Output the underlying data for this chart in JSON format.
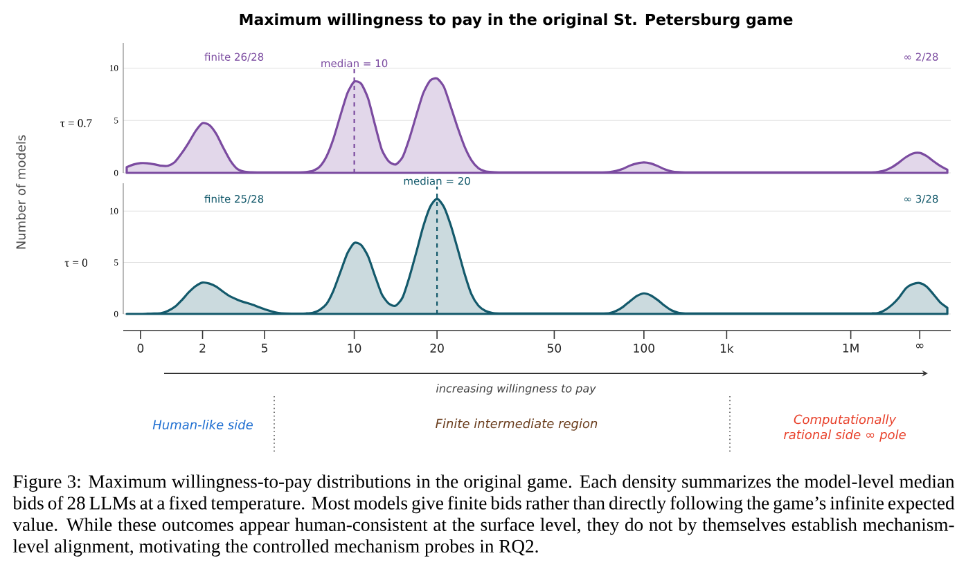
{
  "chart_data": [
    {
      "type": "area",
      "title": "Maximum willingness to pay in the original St. Petersburg game",
      "ylabel": "τ = 0.7",
      "annotations": [
        "finite 26/28",
        "∞ 2/28",
        "Number of models"
      ],
      "categories": [
        null,
        null,
        null,
        null,
        null,
        null,
        null,
        null,
        null,
        null,
        null,
        null,
        null,
        null,
        null,
        null,
        null,
        null,
        null,
        null,
        null,
        null,
        null,
        null,
        null,
        null,
        null,
        null,
        null,
        null,
        null,
        null,
        null,
        null,
        null,
        null,
        null,
        null,
        null,
        null,
        null,
        null,
        null,
        null,
        null,
        null,
        null,
        null,
        null,
        null,
        null,
        null,
        null,
        null,
        null,
        null,
        null,
        null,
        null,
        null,
        null,
        null,
        null,
        null,
        null,
        null,
        null,
        null,
        null,
        null,
        null,
        null,
        null,
        null,
        null,
        null,
        null,
        null,
        null,
        null,
        null,
        null,
        null,
        null,
        null,
        null,
        null,
        null,
        null,
        null,
        null,
        null,
        null,
        null,
        null,
        null,
        null,
        null,
        null,
        null,
        null,
        null,
        null,
        null,
        null,
        null,
        null,
        null,
        null,
        null,
        null,
        null,
        null,
        null,
        null,
        null,
        null,
        null,
        null,
        null
      ],
      "series": [
        {
          "color": "#7b4ba0",
          "values": [
            0.55,
            0.8,
            0.93,
            0.92,
            0.82,
            0.68,
            0.68,
            1.05,
            1.9,
            2.9,
            4.0,
            4.75,
            4.55,
            3.7,
            2.4,
            1.2,
            0.4,
            0.12,
            0.06,
            0.05,
            0.05,
            0.05,
            0.05,
            0.05,
            0.05,
            0.05,
            0.08,
            0.2,
            0.6,
            1.6,
            3.3,
            5.5,
            7.6,
            8.7,
            8.5,
            7.1,
            4.6,
            2.2,
            1.1,
            0.8,
            1.5,
            3.3,
            5.5,
            7.6,
            8.8,
            9.0,
            8.2,
            6.3,
            4.3,
            2.5,
            1.2,
            0.45,
            0.15,
            0.07,
            0.05,
            0.05,
            0.05,
            0.05,
            0.05,
            0.05,
            0.05,
            0.05,
            0.05,
            0.05,
            0.05,
            0.05,
            0.05,
            0.05,
            0.05,
            0.05,
            0.08,
            0.2,
            0.4,
            0.7,
            0.9,
            1.0,
            0.9,
            0.65,
            0.35,
            0.15,
            0.07,
            0.05,
            0.05,
            0.05,
            0.05,
            0.05,
            0.05,
            0.05,
            0.05,
            0.05,
            0.05,
            0.05,
            0.05,
            0.05,
            0.05,
            0.05,
            0.05,
            0.05,
            0.05,
            0.05,
            0.05,
            0.05,
            0.05,
            0.05,
            0.05,
            0.05,
            0.05,
            0.05,
            0.05,
            0.1,
            0.25,
            0.55,
            1.0,
            1.5,
            1.85,
            1.9,
            1.6,
            1.1,
            0.65,
            0.3
          ]
        }
      ],
      "ylim": [
        0,
        12.4
      ],
      "yticks": [
        0,
        5,
        10
      ],
      "tick_labels": "y",
      "grid": "y",
      "ref_lines": [
        {
          "axis": "x",
          "value": "10",
          "label": "median = 10",
          "color": "#7b4ba0",
          "line_style": "dashed"
        }
      ]
    },
    {
      "type": "area",
      "ylabel": "τ = 0",
      "xlabel": "increasing willingness to pay",
      "annotations": [
        "finite 25/28",
        "∞ 3/28",
        "Human-like side",
        "Finite intermediate region",
        "Computationally rational side ∞ pole",
        "Figure 3: Maximum willingness-to-pay distributions in the original game. Each density summarizes the model-level median bids of 28 LLMs at a fixed temperature. Most models give finite bids rather than directly following the game’s infinite expected value. While these outcomes appear human-consistent at the surface level, they do not by themselves establish mechanism-level alignment, motivating the controlled mechanism probes in RQ2."
      ],
      "categories": [
        null,
        null,
        "0",
        null,
        null,
        null,
        null,
        null,
        null,
        null,
        null,
        "2",
        null,
        null,
        null,
        null,
        null,
        null,
        null,
        null,
        "5",
        null,
        null,
        null,
        null,
        null,
        null,
        null,
        null,
        null,
        null,
        null,
        null,
        "10",
        null,
        null,
        null,
        null,
        null,
        null,
        null,
        null,
        null,
        null,
        null,
        "20",
        null,
        null,
        null,
        null,
        null,
        null,
        null,
        null,
        null,
        null,
        null,
        null,
        null,
        null,
        null,
        null,
        "50",
        null,
        null,
        null,
        null,
        null,
        null,
        null,
        null,
        null,
        null,
        null,
        null,
        "100",
        null,
        null,
        null,
        null,
        null,
        null,
        null,
        null,
        null,
        null,
        null,
        "1k",
        null,
        null,
        null,
        null,
        null,
        null,
        null,
        null,
        null,
        null,
        null,
        null,
        null,
        null,
        null,
        null,
        null,
        "1M",
        null,
        null,
        null,
        null,
        null,
        null,
        null,
        null,
        null,
        "∞",
        null,
        null,
        null,
        null
      ],
      "series": [
        {
          "color": "#13596b",
          "values": [
            0,
            0,
            0,
            0.02,
            0.04,
            0.08,
            0.3,
            0.7,
            1.35,
            2.1,
            2.7,
            3.05,
            2.95,
            2.65,
            2.15,
            1.7,
            1.4,
            1.15,
            0.95,
            0.7,
            0.45,
            0.25,
            0.1,
            0.04,
            0.03,
            0.03,
            0.05,
            0.12,
            0.4,
            1.0,
            2.3,
            4.1,
            5.9,
            6.9,
            6.7,
            5.6,
            3.7,
            1.9,
            1.0,
            0.8,
            1.6,
            3.6,
            6.0,
            8.5,
            10.4,
            11.2,
            10.4,
            8.6,
            6.3,
            3.9,
            1.9,
            0.8,
            0.3,
            0.1,
            0.05,
            0.05,
            0.05,
            0.05,
            0.05,
            0.05,
            0.05,
            0.05,
            0.05,
            0.05,
            0.05,
            0.05,
            0.05,
            0.05,
            0.05,
            0.05,
            0.08,
            0.3,
            0.7,
            1.25,
            1.75,
            2.0,
            1.8,
            1.35,
            0.8,
            0.35,
            0.12,
            0.05,
            0.05,
            0.05,
            0.05,
            0.05,
            0.05,
            0.05,
            0.05,
            0.05,
            0.05,
            0.05,
            0.05,
            0.05,
            0.05,
            0.05,
            0.05,
            0.05,
            0.05,
            0.05,
            0.05,
            0.05,
            0.05,
            0.05,
            0.05,
            0.05,
            0.05,
            0.05,
            0.05,
            0.1,
            0.4,
            0.9,
            1.6,
            2.5,
            2.9,
            3.0,
            2.65,
            1.9,
            1.1,
            0.6
          ]
        }
      ],
      "ylim": [
        0,
        12.7
      ],
      "yticks": [
        0,
        5,
        10
      ],
      "grid": "y",
      "ref_lines": [
        {
          "axis": "x",
          "value": "20",
          "label": "median = 20",
          "color": "#13596b",
          "line_style": "dashed"
        }
      ]
    }
  ]
}
